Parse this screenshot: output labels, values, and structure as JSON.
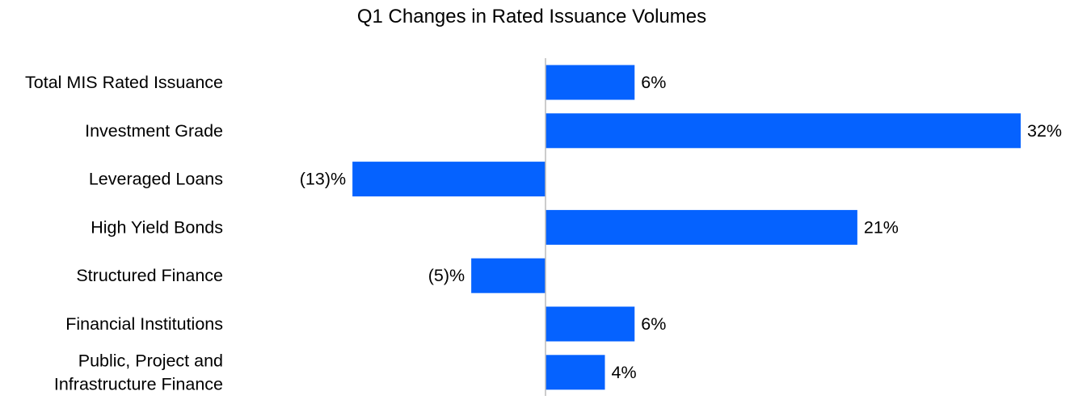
{
  "chart_data": {
    "type": "bar",
    "orientation": "horizontal",
    "title": "Q1 Changes in Rated Issuance Volumes",
    "categories": [
      [
        "Total MIS Rated Issuance"
      ],
      [
        "Investment Grade"
      ],
      [
        "Leveraged Loans"
      ],
      [
        "High Yield Bonds"
      ],
      [
        "Structured Finance"
      ],
      [
        "Financial Institutions"
      ],
      [
        "Public, Project and",
        "Infrastructure Finance"
      ]
    ],
    "values": [
      6,
      32,
      -13,
      21,
      -5,
      6,
      4
    ],
    "value_labels": [
      "6%",
      "32%",
      "(13)%",
      "21%",
      "(5)%",
      "6%",
      "4%"
    ],
    "unit": "%",
    "xlim": [
      -36.5,
      32
    ],
    "grid": false,
    "legend": "none",
    "colors": {
      "bar": "#0562FF",
      "axis": "#BBBBBB",
      "text": "#000000"
    }
  }
}
